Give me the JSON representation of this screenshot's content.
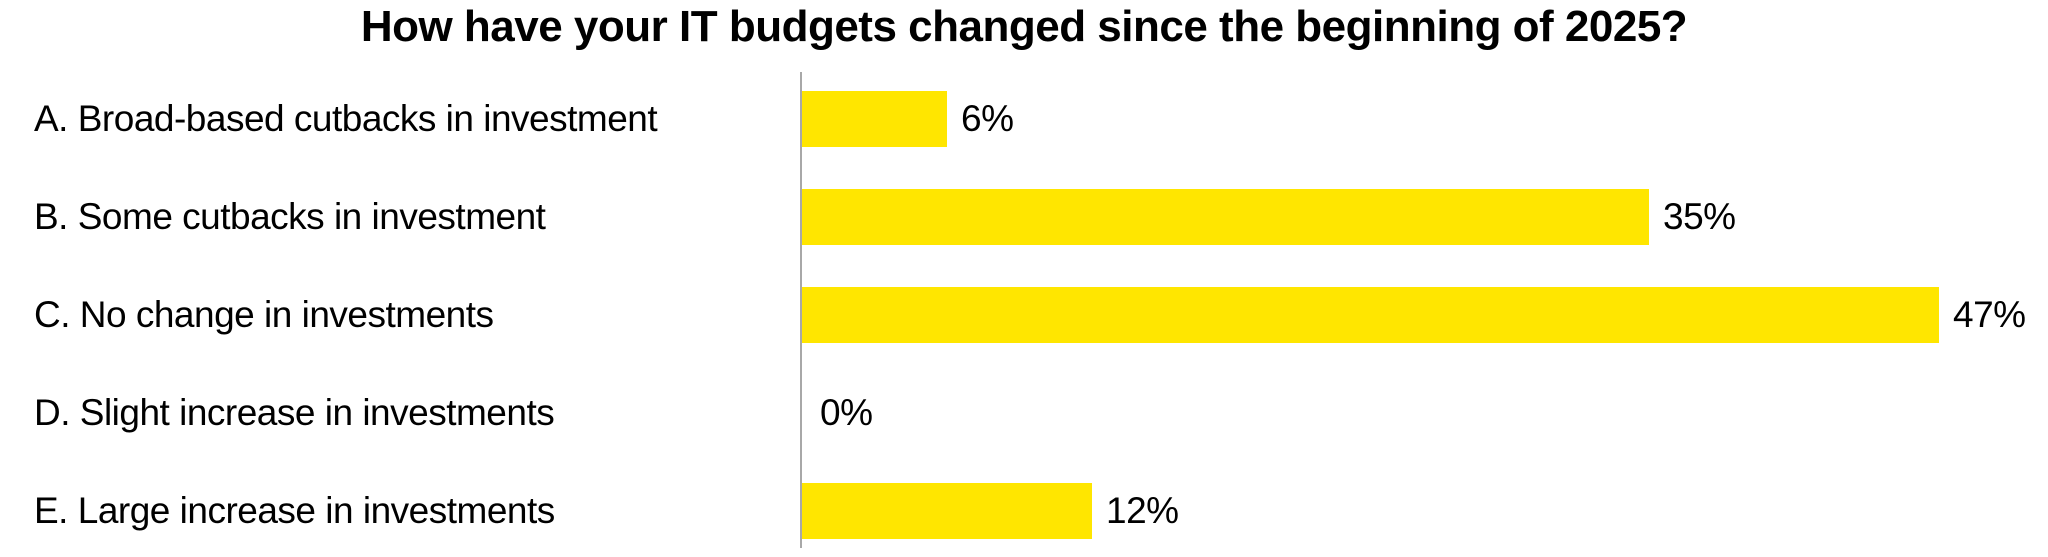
{
  "chart_data": {
    "type": "bar",
    "orientation": "horizontal",
    "title": "How have your IT budgets changed since the beginning of 2025?",
    "categories": [
      "A. Broad-based cutbacks in investment",
      "B. Some cutbacks in investment",
      "C. No change in investments",
      "D. Slight increase in investments",
      "E. Large increase in investments"
    ],
    "values": [
      6,
      35,
      47,
      0,
      12
    ],
    "value_labels": [
      "6%",
      "35%",
      "47%",
      "0%",
      "12%"
    ],
    "xlabel": "",
    "ylabel": "",
    "xlim": [
      0,
      51.5
    ],
    "grid": false,
    "legend": false,
    "bar_color": "#FFE600",
    "axis_line_color": "#A8A8A8",
    "text_color": "#000000",
    "background_color": "#FFFFFF"
  }
}
